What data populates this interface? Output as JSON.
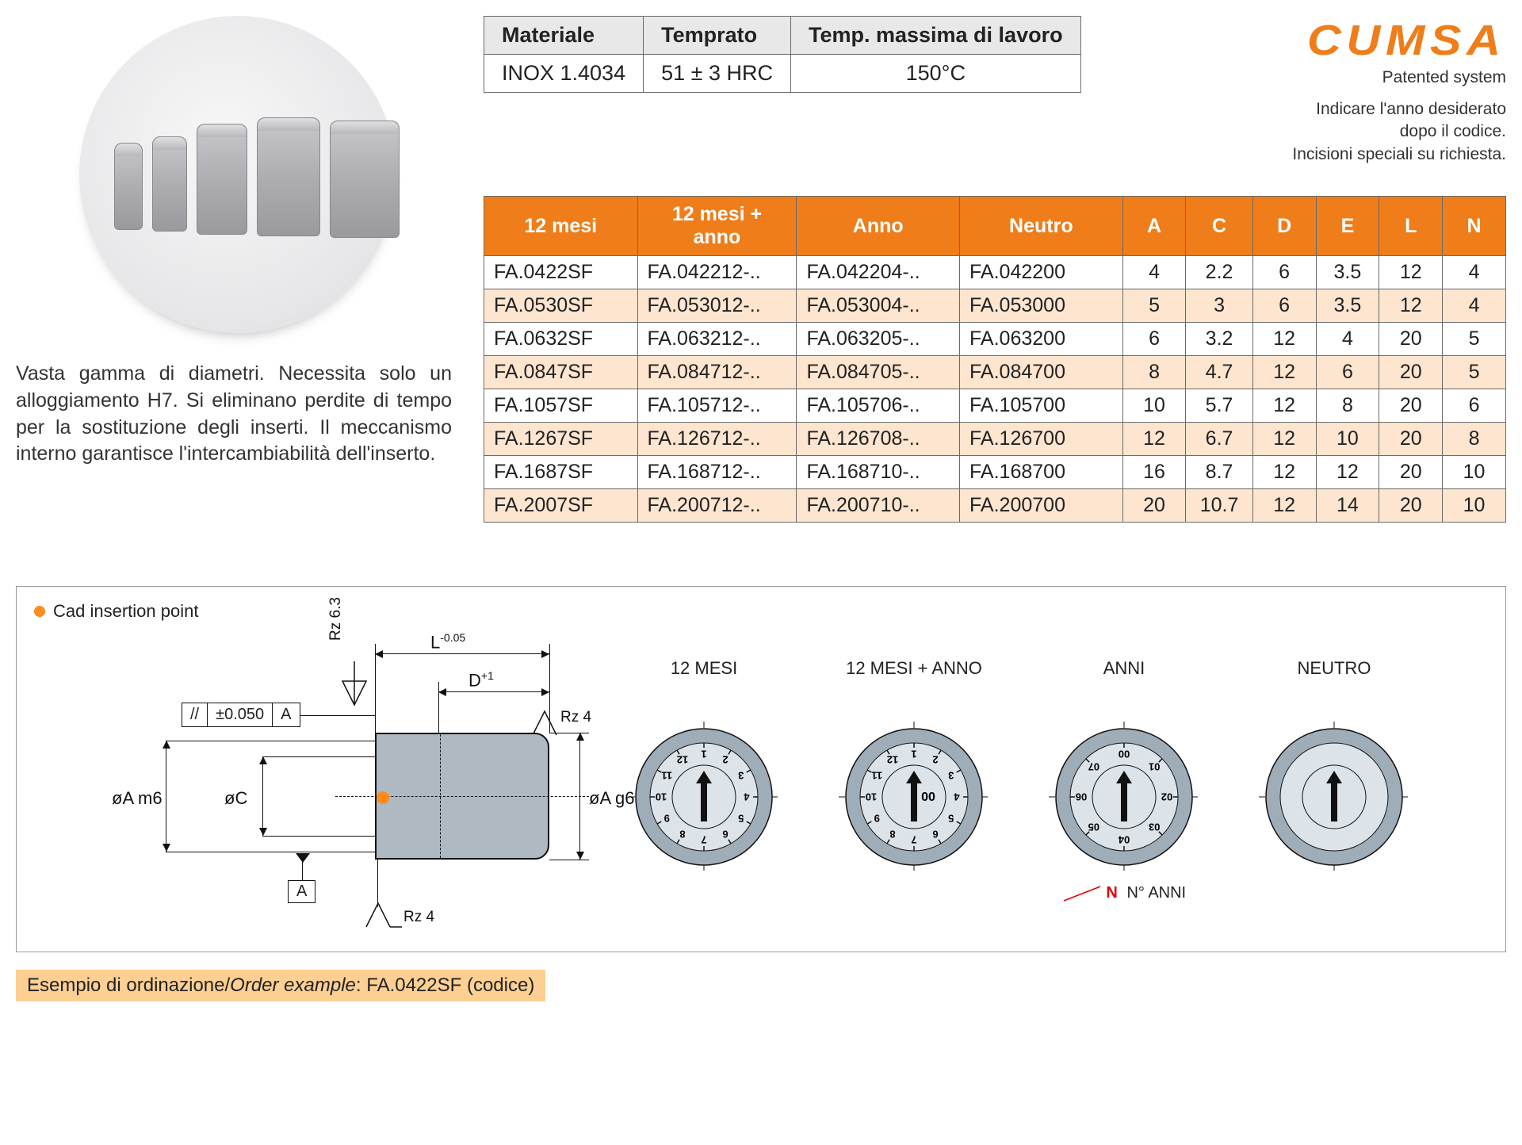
{
  "spec": {
    "headers": [
      "Materiale",
      "Temprato",
      "Temp. massima di lavoro"
    ],
    "row": [
      "INOX 1.4034",
      "51 ± 3 HRC",
      "150°C"
    ]
  },
  "brand": {
    "logo": "CUMSA",
    "sub": "Patented system",
    "note1": "Indicare l'anno desiderato",
    "note2": "dopo il codice.",
    "note3": "Incisioni speciali su richiesta."
  },
  "desc": "Vasta gamma di diametri. Necessita solo un alloggiamento H7. Si eliminano perdite di tempo per la sostituzione degli inserti. Il meccanismo interno garantisce l'inter­cambiabilità dell'inserto.",
  "table": {
    "headers": [
      "12 mesi",
      "12 mesi + anno",
      "Anno",
      "Neutro",
      "A",
      "C",
      "D",
      "E",
      "L",
      "N"
    ],
    "rows": [
      [
        "FA.0422SF",
        "FA.042212-..",
        "FA.042204-..",
        "FA.042200",
        "4",
        "2.2",
        "6",
        "3.5",
        "12",
        "4"
      ],
      [
        "FA.0530SF",
        "FA.053012-..",
        "FA.053004-..",
        "FA.053000",
        "5",
        "3",
        "6",
        "3.5",
        "12",
        "4"
      ],
      [
        "FA.0632SF",
        "FA.063212-..",
        "FA.063205-..",
        "FA.063200",
        "6",
        "3.2",
        "12",
        "4",
        "20",
        "5"
      ],
      [
        "FA.0847SF",
        "FA.084712-..",
        "FA.084705-..",
        "FA.084700",
        "8",
        "4.7",
        "12",
        "6",
        "20",
        "5"
      ],
      [
        "FA.1057SF",
        "FA.105712-..",
        "FA.105706-..",
        "FA.105700",
        "10",
        "5.7",
        "12",
        "8",
        "20",
        "6"
      ],
      [
        "FA.1267SF",
        "FA.126712-..",
        "FA.126708-..",
        "FA.126700",
        "12",
        "6.7",
        "12",
        "10",
        "20",
        "8"
      ],
      [
        "FA.1687SF",
        "FA.168712-..",
        "FA.168710-..",
        "FA.168700",
        "16",
        "8.7",
        "12",
        "12",
        "20",
        "10"
      ],
      [
        "FA.2007SF",
        "FA.200712-..",
        "FA.200710-..",
        "FA.200700",
        "20",
        "10.7",
        "12",
        "14",
        "20",
        "10"
      ]
    ]
  },
  "diagram": {
    "cad_legend": "Cad insertion point",
    "L": "L",
    "L_tol": "-0.05",
    "D": "D",
    "D_tol": "+1",
    "Rz63": "Rz 6.3",
    "Rz4": "Rz 4",
    "gd_par": "//",
    "gd_tol": "±0.050",
    "gd_datum": "A",
    "oA_m6": "øA m6",
    "oC": "øC",
    "oA_g6": "øA g6",
    "datum": "A",
    "dials": {
      "d1_title": "12 MESI",
      "d2_title": "12 MESI + ANNO",
      "d3_title": "ANNI",
      "d4_title": "NEUTRO",
      "d1_nums": [
        "1",
        "2",
        "3",
        "4",
        "5",
        "6",
        "7",
        "8",
        "9",
        "10",
        "11",
        "12"
      ],
      "d3_nums": [
        "00",
        "01",
        "02",
        "03",
        "04",
        "05",
        "06",
        "07"
      ],
      "n_red": "N",
      "n_text": "N° ANNI",
      "center_00": "00"
    }
  },
  "order": {
    "label_it": "Esempio di ordinazione/",
    "label_en": "Order example",
    "value": ": FA.0422SF (codice)"
  },
  "colors": {
    "orange": "#ef7d1a",
    "peach": "#fde5cf",
    "hilite": "#fccf93",
    "steel": "#aeb9c1",
    "dial_outer": "#9fadb8",
    "dial_inner": "#dce3e9"
  }
}
